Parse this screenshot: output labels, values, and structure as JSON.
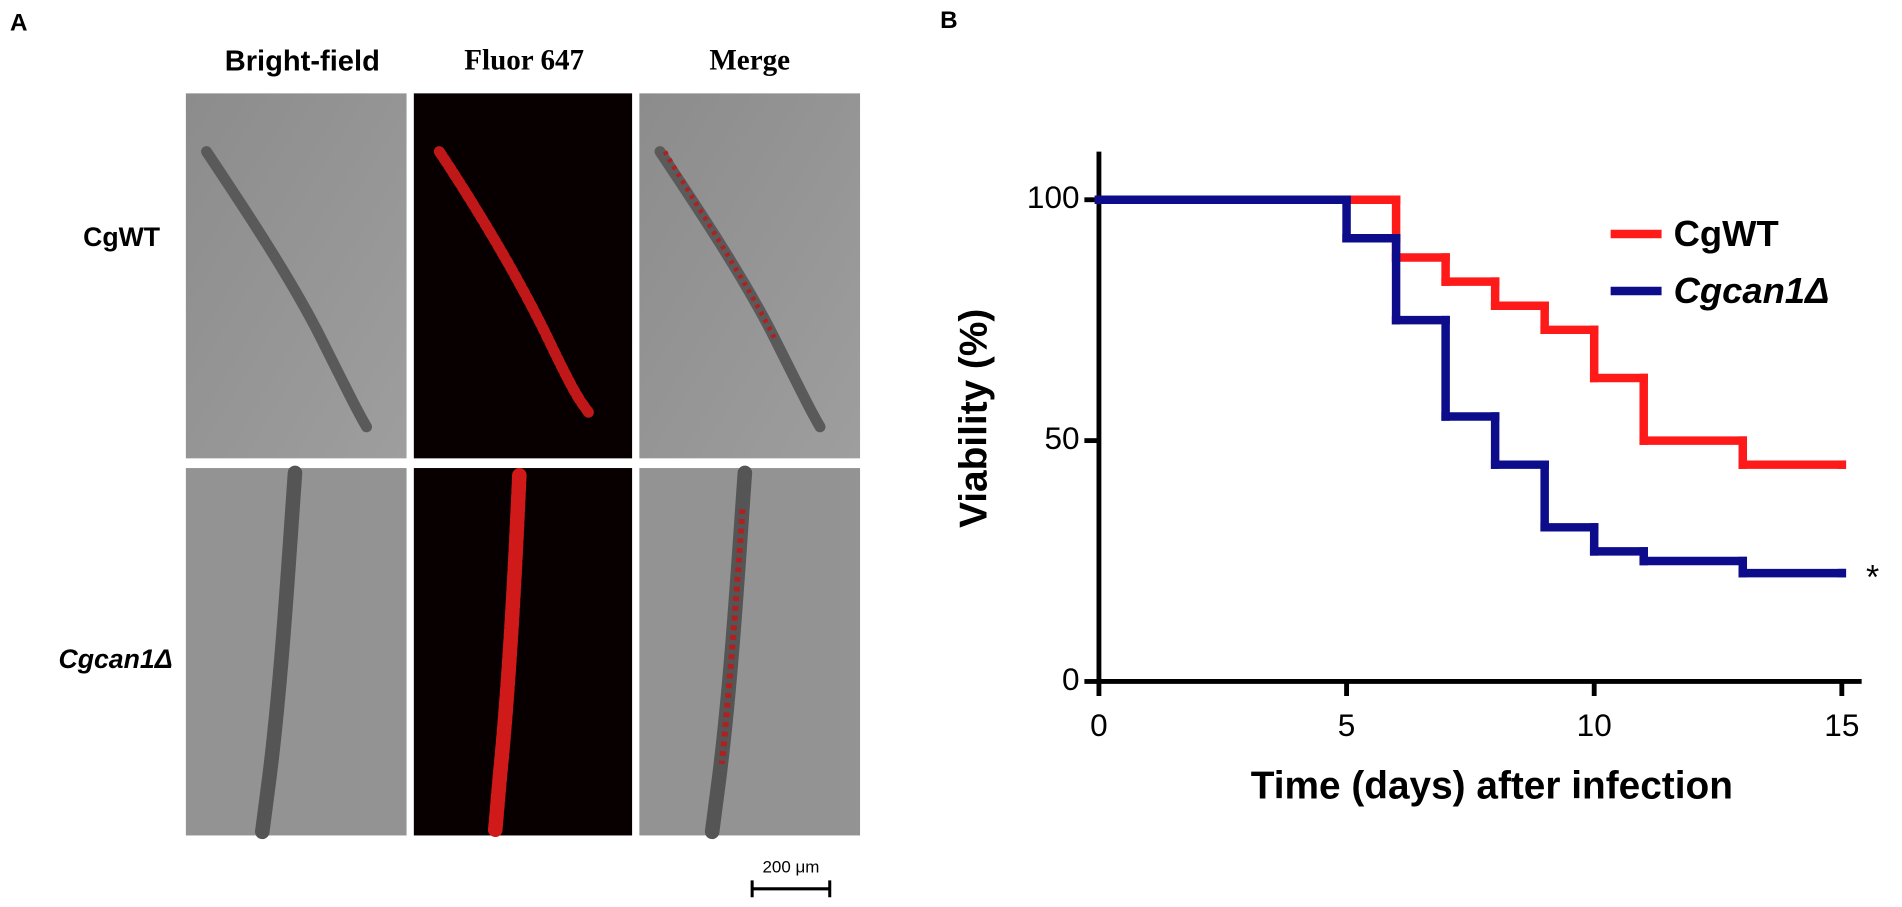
{
  "panel_a": {
    "label": "A",
    "columns": [
      "Bright-field",
      "Fluor 647",
      "Merge"
    ],
    "rows": [
      "CgWT",
      "Cgcan1Δ"
    ],
    "scale_bar": "200 μm"
  },
  "chart_data": {
    "type": "step",
    "panel_label": "B",
    "xlabel": "Time (days) after infection",
    "ylabel": "Viability (%)",
    "x": [
      0,
      5,
      6,
      7,
      8,
      9,
      10,
      11,
      13,
      15
    ],
    "series": [
      {
        "name": "CgWT",
        "color": "#ff1a1a",
        "values": [
          100,
          100,
          88,
          83,
          78,
          73,
          63,
          50,
          45,
          45
        ]
      },
      {
        "name": "Cgcan1Δ",
        "color": "#0d0d8c",
        "values": [
          100,
          92,
          75,
          55,
          45,
          32,
          27,
          25,
          22.5,
          22.5
        ]
      }
    ],
    "xlim": [
      0,
      15.4
    ],
    "ylim": [
      0,
      110
    ],
    "xticks": [
      0,
      5,
      10,
      15
    ],
    "yticks": [
      0,
      50,
      100
    ],
    "legend": "upper right",
    "annotation": "*"
  }
}
